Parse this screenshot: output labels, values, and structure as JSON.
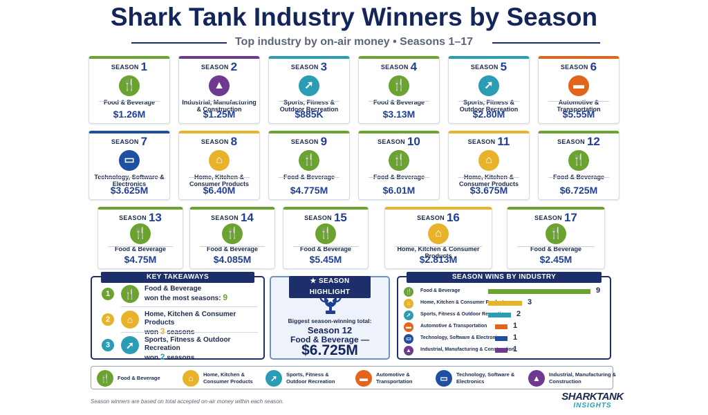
{
  "header": {
    "title": "Shark Tank Industry Winners by Season",
    "subtitle": "Top industry by on-air money • Seasons 1–17"
  },
  "colors": {
    "food": "#6aa32f",
    "industrial": "#6d3a8f",
    "sports": "#2a9db5",
    "automotive": "#e2651b",
    "technology": "#1f4fa0",
    "home": "#e8b22a",
    "navy": "#1c2f6b",
    "value_blue": "#1f3f93"
  },
  "icons": {
    "food": "fork-knife-icon",
    "industrial": "factory-icon",
    "sports": "runner-icon",
    "automotive": "car-icon",
    "technology": "laptop-icon",
    "home": "house-icon"
  },
  "season_label": "SEASON",
  "seasons": [
    {
      "season": "1",
      "industry": "Food & Beverage",
      "cat": "food",
      "amount": "$1.26M"
    },
    {
      "season": "2",
      "industry": "Industrial, Manufacturing & Construction",
      "cat": "industrial",
      "amount": "$1.25M"
    },
    {
      "season": "3",
      "industry": "Sports, Fitness & Outdoor Recreation",
      "cat": "sports",
      "amount": "$885K"
    },
    {
      "season": "4",
      "industry": "Food & Beverage",
      "cat": "food",
      "amount": "$3.13M"
    },
    {
      "season": "5",
      "industry": "Sports, Fitness & Outdoor Recreation",
      "cat": "sports",
      "amount": "$2.80M"
    },
    {
      "season": "6",
      "industry": "Automotive & Transportation",
      "cat": "automotive",
      "amount": "$5.55M"
    },
    {
      "season": "7",
      "industry": "Technology, Software & Electronics",
      "cat": "technology",
      "amount": "$3.625M"
    },
    {
      "season": "8",
      "industry": "Home, Kitchen & Consumer Products",
      "cat": "home",
      "amount": "$6.40M"
    },
    {
      "season": "9",
      "industry": "Food & Beverage",
      "cat": "food",
      "amount": "$4.775M"
    },
    {
      "season": "10",
      "industry": "Food & Beverage",
      "cat": "food",
      "amount": "$6.01M"
    },
    {
      "season": "11",
      "industry": "Home, Kitchen & Consumer Products",
      "cat": "home",
      "amount": "$3.675M"
    },
    {
      "season": "12",
      "industry": "Food & Beverage",
      "cat": "food",
      "amount": "$6.725M"
    },
    {
      "season": "13",
      "industry": "Food & Beverage",
      "cat": "food",
      "amount": "$4.75M"
    },
    {
      "season": "14",
      "industry": "Food & Beverage",
      "cat": "food",
      "amount": "$4.085M"
    },
    {
      "season": "15",
      "industry": "Food & Beverage",
      "cat": "food",
      "amount": "$5.45M"
    },
    {
      "season": "16",
      "industry": "Home, Kitchen & Consumer Products",
      "cat": "home",
      "amount": "$2.813M"
    },
    {
      "season": "17",
      "industry": "Food & Beverage",
      "cat": "food",
      "amount": "$2.45M"
    }
  ],
  "takeaways": {
    "title": "KEY TAKEAWAYS",
    "items": [
      {
        "num": "1",
        "cat": "food",
        "line1": "Food & Beverage",
        "line2": "won the most seasons:",
        "count": "9",
        "suffix": ""
      },
      {
        "num": "2",
        "cat": "home",
        "line1": "Home, Kitchen & Consumer Products",
        "line2": "won",
        "count": "3",
        "suffix": "seasons"
      },
      {
        "num": "3",
        "cat": "sports",
        "line1": "Sports, Fitness & Outdoor Recreation",
        "line2": "won",
        "count": "2",
        "suffix": "seasons"
      }
    ]
  },
  "highlight": {
    "title": "SEASON HIGHLIGHT",
    "line1": "Biggest season-winning total:",
    "line2": "Season 12",
    "line3": "Food & Beverage —",
    "value": "$6.725M"
  },
  "chart_data": {
    "type": "bar",
    "title": "SEASON WINS BY INDUSTRY",
    "orientation": "horizontal",
    "categories": [
      "Food & Beverage",
      "Home, Kitchen & Consumer Products",
      "Sports, Fitness & Outdoor Recreation",
      "Automotive & Transportation",
      "Technology, Software & Electronics",
      "Industrial, Manufacturing & Construction"
    ],
    "cats": [
      "food",
      "home",
      "sports",
      "automotive",
      "technology",
      "industrial"
    ],
    "values": [
      9,
      3,
      2,
      1,
      1,
      1
    ],
    "xlim": [
      0,
      9
    ],
    "grid": false
  },
  "legend": [
    {
      "cat": "food",
      "label": "Food & Beverage"
    },
    {
      "cat": "home",
      "label": "Home, Kitchen &\nConsumer Products"
    },
    {
      "cat": "sports",
      "label": "Sports, Fitness &\nOutdoor Recreation"
    },
    {
      "cat": "automotive",
      "label": "Automotive &\nTransportation"
    },
    {
      "cat": "technology",
      "label": "Technology, Software &\nElectronics"
    },
    {
      "cat": "industrial",
      "label": "Industrial, Manufacturing &\nConstruction"
    }
  ],
  "footer": {
    "note": "Season winners are based on total accepted on-air money within each season.",
    "logo_line1": "SHARKTANK",
    "logo_line2": "INSIGHTS"
  }
}
